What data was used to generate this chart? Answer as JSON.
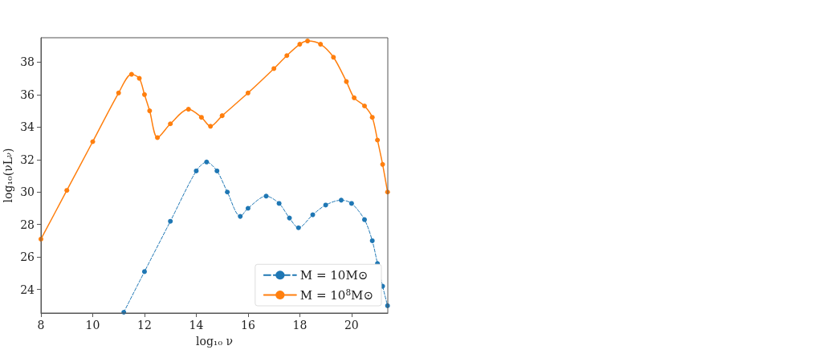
{
  "chart_data": {
    "type": "line",
    "xlabel": "log₁₀ ν",
    "ylabel": "log₁₀(νL$_{ν}$)",
    "xlim": [
      8,
      21.4
    ],
    "ylim": [
      22.55,
      39.5
    ],
    "xticks": [
      8,
      10,
      12,
      14,
      16,
      18,
      20
    ],
    "yticks": [
      24,
      26,
      28,
      30,
      32,
      34,
      36,
      38
    ],
    "grid": false,
    "legend": "bottom right",
    "marker": "circle",
    "series": [
      {
        "name": "M = 10M⊙",
        "color": "#1f77b4",
        "line_style": "dashed",
        "x": [
          11.2,
          12,
          13,
          14,
          14.4,
          14.8,
          15.2,
          15.7,
          16.0,
          16.7,
          17.2,
          17.6,
          17.95,
          18.5,
          19.0,
          19.6,
          20.0,
          20.5,
          20.8,
          21.0,
          21.2,
          21.39
        ],
        "values": [
          22.6,
          25.1,
          28.2,
          31.3,
          31.85,
          31.3,
          30,
          28.5,
          29,
          29.75,
          29.3,
          28.4,
          27.8,
          28.6,
          29.2,
          29.5,
          29.3,
          28.3,
          27,
          25.6,
          24.2,
          23
        ]
      },
      {
        "name": "M = 10$^{8}$M⊙",
        "color": "#ff7f0e",
        "line_style": "solid",
        "x": [
          8,
          9,
          10,
          11,
          11.5,
          11.8,
          12.0,
          12.2,
          12.5,
          13,
          13.7,
          14.2,
          14.55,
          15,
          16,
          17,
          17.5,
          18,
          18.3,
          18.8,
          19.3,
          19.8,
          20.1,
          20.5,
          20.8,
          21.0,
          21.2,
          21.39
        ],
        "values": [
          27.1,
          30.1,
          33.1,
          36.1,
          37.25,
          37,
          36,
          35,
          33.35,
          34.2,
          35.1,
          34.6,
          34.05,
          34.7,
          36.1,
          37.6,
          38.4,
          39.1,
          39.3,
          39.1,
          38.3,
          36.8,
          35.8,
          35.3,
          34.6,
          33.2,
          31.7,
          30
        ]
      }
    ]
  }
}
